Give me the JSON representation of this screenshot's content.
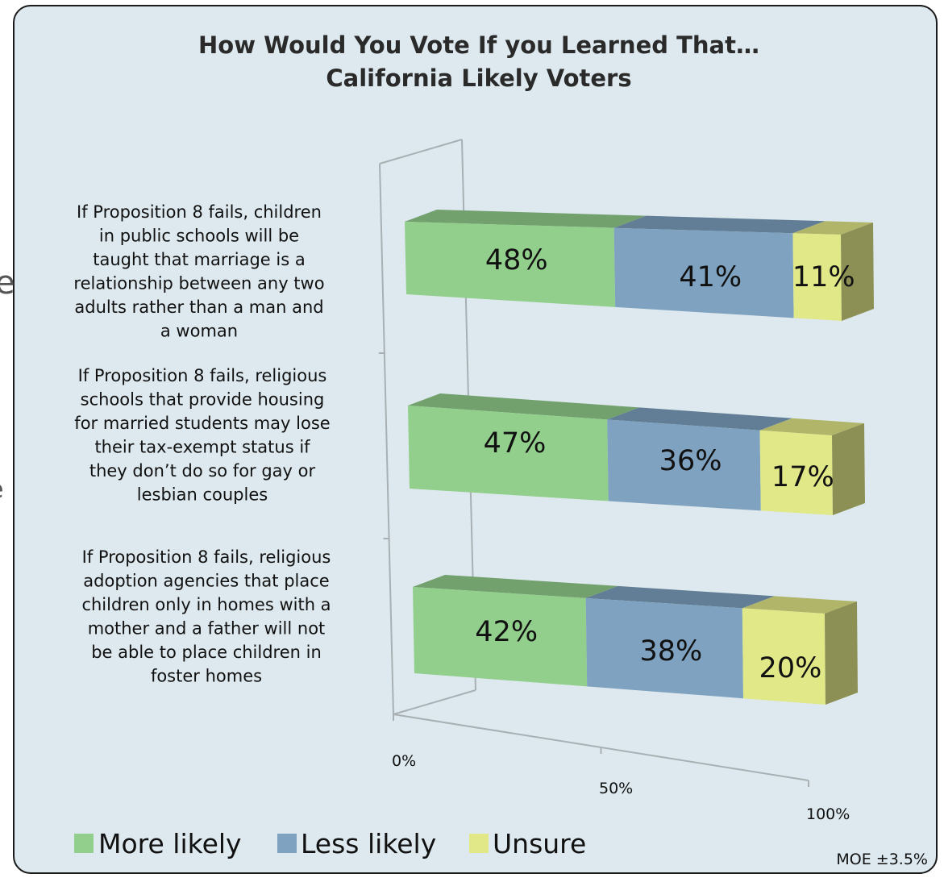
{
  "chart_data": {
    "type": "bar",
    "orientation": "horizontal",
    "stacked": true,
    "three_d": true,
    "title": "How Would You Vote If you Learned That…",
    "subtitle": "California Likely Voters",
    "categories": [
      "If Proposition 8 fails, children in public schools will be taught that marriage is a relationship between any two adults rather than a man and a woman",
      "If Proposition 8 fails, religious schools that provide housing for married students may lose their tax-exempt status if they don’t do so for gay or lesbian couples",
      "If Proposition 8 fails, religious adoption agencies that place children only in homes with a mother and a father will not be able to place children in foster homes"
    ],
    "category_lines": [
      [
        "If Proposition 8 fails, children",
        "in public schools will be",
        "taught that marriage is a",
        "relationship between any two",
        "adults rather than a man and",
        "a woman"
      ],
      [
        "If Proposition 8 fails, religious",
        "schools that provide housing",
        "for married students may lose",
        "their tax-exempt status if",
        "they don’t do so for gay or",
        "lesbian couples"
      ],
      [
        "If Proposition 8 fails, religious",
        "adoption agencies that place",
        "children only in homes with a",
        "mother and a father will not",
        "be able to place children in",
        "foster homes"
      ]
    ],
    "series": [
      {
        "name": "More likely",
        "values": [
          48,
          47,
          42
        ],
        "labels": [
          "48%",
          "47%",
          "42%"
        ],
        "color": "#92cf8c"
      },
      {
        "name": "Less likely",
        "values": [
          41,
          36,
          38
        ],
        "labels": [
          "41%",
          "36%",
          "38%"
        ],
        "color": "#7ea2c0"
      },
      {
        "name": "Unsure",
        "values": [
          11,
          17,
          20
        ],
        "labels": [
          "11%",
          "17%",
          "20%"
        ],
        "color": "#e1e888"
      }
    ],
    "xlim": [
      0,
      100
    ],
    "ticks": [
      0,
      50,
      100
    ],
    "tick_labels": [
      "0%",
      "50%",
      "100%"
    ],
    "legend_position": "bottom-left",
    "grid": false
  },
  "note": "MOE ±3.5%",
  "edge_fragments": [
    "e",
    "e"
  ]
}
